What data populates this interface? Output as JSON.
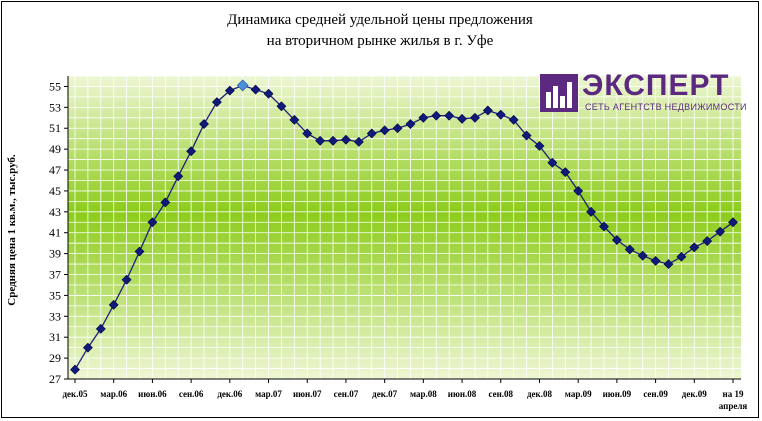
{
  "title_line1": "Динамика средней удельной цены предложения",
  "title_line2": "на вторичном рынке жилья в г. Уфе",
  "logo": {
    "name": "ЭКСПЕРТ",
    "subtitle": "СЕТЬ АГЕНТСТВ НЕДВИЖИМОСТИ"
  },
  "colors": {
    "line": "#1f1f7a",
    "marker": "#0f1a7a",
    "highlight": "#4a90d9",
    "plot_top": "#e8f3c8",
    "plot_mid": "#8ccc1a",
    "logo": "#5b2a80"
  },
  "chart_data": {
    "type": "line",
    "ylabel": "Средняя цена 1 кв.м., тыс.руб.",
    "ylim": [
      27,
      56
    ],
    "yticks": [
      27,
      29,
      31,
      33,
      35,
      37,
      39,
      41,
      43,
      45,
      47,
      49,
      51,
      53,
      55
    ],
    "grid": true,
    "xtick_labels": [
      "дек.05",
      "мар.06",
      "июн.06",
      "сен.06",
      "дек.06",
      "мар.07",
      "июн.07",
      "сен.07",
      "дек.07",
      "мар.08",
      "июн.08",
      "сен.08",
      "дек.08",
      "мар.09",
      "июн.09",
      "сен.09",
      "дек.09",
      "на 19 апреля"
    ],
    "series": [
      {
        "values": [
          27.9,
          30.0,
          31.8,
          34.1,
          36.5,
          39.2,
          42.0,
          43.9,
          46.4,
          48.8,
          51.4,
          53.5,
          54.6,
          55.1,
          54.7,
          54.3,
          53.1,
          51.8,
          50.5,
          49.8,
          49.8,
          49.9,
          49.7,
          50.5,
          50.8,
          51.0,
          51.4,
          52.0,
          52.2,
          52.2,
          51.9,
          52.0,
          52.7,
          52.3,
          51.8,
          50.3,
          49.3,
          47.7,
          46.8,
          45.0,
          43.0,
          41.6,
          40.3,
          39.4,
          38.8,
          38.3,
          38.0,
          38.7,
          39.6,
          40.2,
          41.1,
          42.0
        ]
      }
    ],
    "highlight_point_index": 13
  }
}
